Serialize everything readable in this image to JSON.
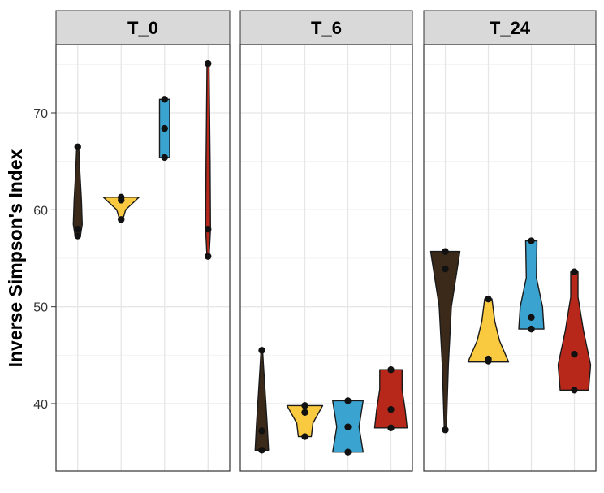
{
  "chart_data": {
    "type": "violin",
    "ylabel": "Inverse Simpson's Index",
    "xlabel": "",
    "ylim": [
      33.5,
      77.0
    ],
    "yticks": [
      40,
      50,
      60,
      70
    ],
    "grid": true,
    "legend": "none",
    "panels": [
      {
        "label": "T_0",
        "groups": [
          {
            "color": "#3b2a1a",
            "points": [
              66.5,
              58.0,
              57.3
            ],
            "widths": [
              [
                57.3,
                0.13
              ],
              [
                58.5,
                0.22
              ],
              [
                61,
                0.18
              ],
              [
                64,
                0.1
              ],
              [
                66.5,
                0.05
              ]
            ]
          },
          {
            "color": "#f9c93f",
            "points": [
              61.3,
              61.0,
              59.0
            ],
            "widths": [
              [
                59.0,
                0.08
              ],
              [
                60,
                0.22
              ],
              [
                61.3,
                0.88
              ]
            ]
          },
          {
            "color": "#3ba3d0",
            "points": [
              71.4,
              68.4,
              65.4
            ],
            "widths": [
              [
                65.4,
                0.25
              ],
              [
                68.4,
                0.25
              ],
              [
                71.4,
                0.25
              ]
            ]
          },
          {
            "color": "#b8281a",
            "points": [
              75.1,
              58.0,
              55.2
            ],
            "widths": [
              [
                55.1,
                0.05
              ],
              [
                58,
                0.12
              ],
              [
                65,
                0.1
              ],
              [
                75.1,
                0.05
              ]
            ]
          }
        ]
      },
      {
        "label": "T_6",
        "groups": [
          {
            "color": "#3b2a1a",
            "points": [
              45.5,
              37.2,
              35.2
            ],
            "widths": [
              [
                35.2,
                0.33
              ],
              [
                38,
                0.26
              ],
              [
                41,
                0.17
              ],
              [
                44,
                0.08
              ],
              [
                45.5,
                0.04
              ]
            ]
          },
          {
            "color": "#f9c93f",
            "points": [
              39.8,
              39.1,
              36.6
            ],
            "widths": [
              [
                36.6,
                0.32
              ],
              [
                38,
                0.4
              ],
              [
                39.8,
                0.88
              ]
            ]
          },
          {
            "color": "#3ba3d0",
            "points": [
              40.3,
              37.6,
              35.0
            ],
            "widths": [
              [
                35.0,
                0.75
              ],
              [
                37.6,
                0.55
              ],
              [
                40.3,
                0.75
              ]
            ]
          },
          {
            "color": "#b8281a",
            "points": [
              43.5,
              39.4,
              37.5
            ],
            "widths": [
              [
                37.5,
                0.8
              ],
              [
                39.4,
                0.7
              ],
              [
                41.5,
                0.55
              ],
              [
                43.5,
                0.55
              ]
            ]
          }
        ]
      },
      {
        "label": "T_24",
        "groups": [
          {
            "color": "#3b2a1a",
            "points": [
              55.7,
              53.9,
              37.3
            ],
            "widths": [
              [
                37.3,
                0.05
              ],
              [
                44,
                0.15
              ],
              [
                50,
                0.3
              ],
              [
                55.7,
                0.72
              ]
            ]
          },
          {
            "color": "#f9c93f",
            "points": [
              50.8,
              44.6,
              44.4
            ],
            "widths": [
              [
                44.3,
                1.0
              ],
              [
                46.5,
                0.55
              ],
              [
                48.5,
                0.32
              ],
              [
                50.8,
                0.18
              ]
            ]
          },
          {
            "color": "#3ba3d0",
            "points": [
              56.8,
              48.9,
              47.7
            ],
            "widths": [
              [
                47.7,
                0.62
              ],
              [
                50,
                0.55
              ],
              [
                53,
                0.25
              ],
              [
                56.8,
                0.28
              ]
            ]
          },
          {
            "color": "#b8281a",
            "points": [
              53.6,
              45.1,
              41.4
            ],
            "widths": [
              [
                41.4,
                0.7
              ],
              [
                44,
                0.8
              ],
              [
                47.5,
                0.45
              ],
              [
                51,
                0.18
              ],
              [
                53.6,
                0.18
              ]
            ]
          }
        ]
      }
    ]
  }
}
